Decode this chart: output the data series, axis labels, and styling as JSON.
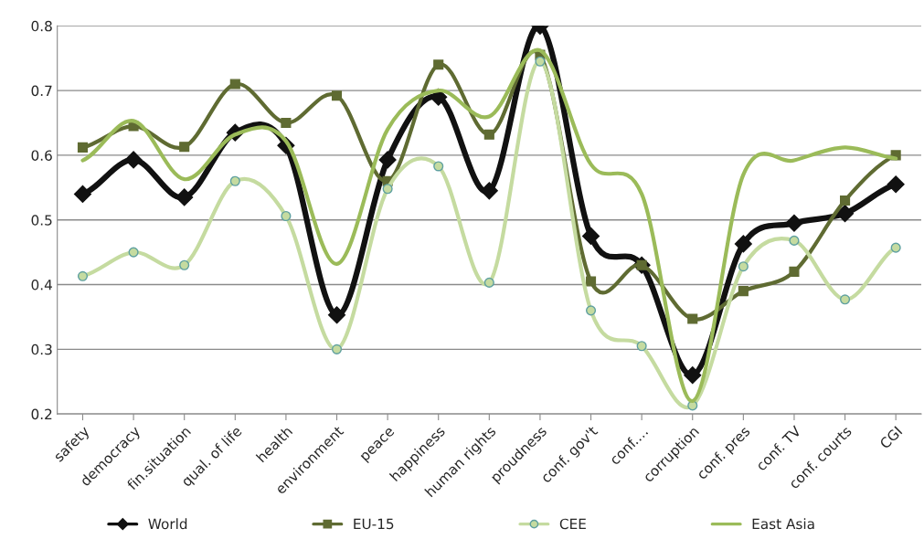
{
  "chart_data": {
    "type": "line",
    "categories": [
      "safety",
      "democracy",
      "fin.situation",
      "qual. of life",
      "health",
      "environment",
      "peace",
      "happiness",
      "human rights",
      "proudness",
      "conf. gov't",
      "conf.…",
      "corruption",
      "conf. pres",
      "conf. TV",
      "conf. courts",
      "CGI"
    ],
    "series": [
      {
        "name": "World",
        "color": "#111111",
        "marker": "diamond",
        "values": [
          0.54,
          0.593,
          0.535,
          0.635,
          0.615,
          0.353,
          0.593,
          0.69,
          0.545,
          0.8,
          0.475,
          0.43,
          0.26,
          0.463,
          0.495,
          0.51,
          0.555
        ]
      },
      {
        "name": "EU-15",
        "color": "#5f6b32",
        "marker": "square",
        "values": [
          0.612,
          0.645,
          0.613,
          0.71,
          0.65,
          0.692,
          0.56,
          0.74,
          0.632,
          0.755,
          0.405,
          0.43,
          0.347,
          0.39,
          0.42,
          0.53,
          0.6
        ]
      },
      {
        "name": "CEE",
        "color": "#c5dba0",
        "marker": "circle",
        "values": [
          0.413,
          0.45,
          0.43,
          0.56,
          0.506,
          0.3,
          0.548,
          0.583,
          0.403,
          0.745,
          0.36,
          0.305,
          0.213,
          0.428,
          0.468,
          0.377,
          0.457
        ]
      },
      {
        "name": "East Asia",
        "color": "#9bbb59",
        "marker": "none",
        "values": [
          0.592,
          0.653,
          0.563,
          0.632,
          0.622,
          0.432,
          0.64,
          0.7,
          0.66,
          0.762,
          0.586,
          0.54,
          0.22,
          0.57,
          0.592,
          0.612,
          0.595
        ]
      }
    ],
    "ylim": [
      0.2,
      0.8
    ],
    "yticks": [
      0.2,
      0.3,
      0.4,
      0.5,
      0.6,
      0.7,
      0.8
    ],
    "grid": "y",
    "legend": "bottom"
  }
}
